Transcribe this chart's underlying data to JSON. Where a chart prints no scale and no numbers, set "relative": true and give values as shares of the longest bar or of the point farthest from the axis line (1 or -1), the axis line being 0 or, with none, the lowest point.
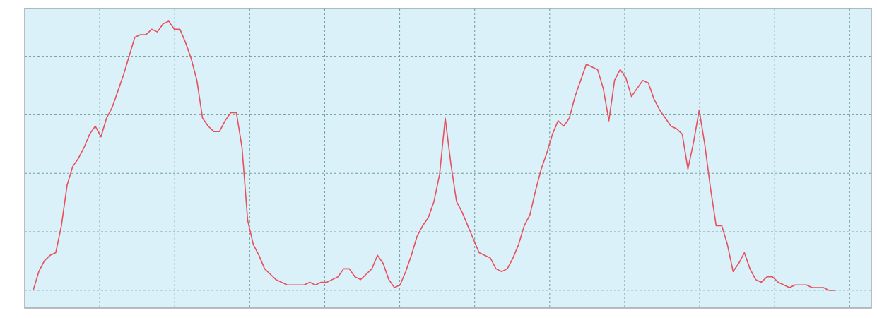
{
  "chart_data": {
    "type": "line",
    "relative": true,
    "grid": true,
    "marker": "none",
    "line_style": "solid",
    "categories": [
      null,
      null,
      null,
      null,
      null,
      null,
      null,
      null,
      null,
      null,
      null,
      null,
      null,
      null,
      null,
      null,
      null,
      null,
      null,
      null,
      null,
      null,
      null,
      null,
      null,
      null,
      null,
      null,
      null,
      null,
      null,
      null,
      null,
      null,
      null,
      null,
      null,
      null,
      null,
      null,
      null,
      null,
      null,
      null,
      null,
      null,
      null,
      null,
      null,
      null,
      null,
      null,
      null,
      null,
      null,
      null,
      null,
      null,
      null,
      null,
      null,
      null,
      null,
      null,
      null,
      null,
      null,
      null,
      null,
      null,
      null,
      null,
      null,
      null,
      null,
      null,
      null,
      null,
      null,
      null,
      null,
      null,
      null,
      null,
      null,
      null,
      null,
      null,
      null,
      null,
      null,
      null,
      null,
      null,
      null,
      null,
      null,
      null,
      null,
      null,
      null,
      null,
      null,
      null,
      null,
      null,
      null,
      null,
      null,
      null,
      null,
      null,
      null,
      null,
      null,
      null,
      null,
      null,
      null,
      null,
      null,
      null,
      null,
      null,
      null,
      null,
      null,
      null,
      null,
      null,
      null,
      null,
      null,
      null,
      null,
      null,
      null,
      null,
      null,
      null,
      null,
      null,
      null
    ],
    "series": [
      {
        "color": "#e8505b",
        "values": [
          0,
          0.07,
          0.11,
          0.13,
          0.14,
          0.24,
          0.39,
          0.46,
          0.49,
          0.53,
          0.58,
          0.61,
          0.57,
          0.64,
          0.68,
          0.74,
          0.8,
          0.87,
          0.94,
          0.95,
          0.95,
          0.97,
          0.96,
          0.99,
          1,
          0.97,
          0.97,
          0.92,
          0.86,
          0.78,
          0.64,
          0.61,
          0.59,
          0.59,
          0.63,
          0.66,
          0.66,
          0.53,
          0.26,
          0.17,
          0.13,
          0.08,
          0.06,
          0.04,
          0.03,
          0.02,
          0.02,
          0.02,
          0.02,
          0.03,
          0.02,
          0.03,
          0.03,
          0.04,
          0.05,
          0.08,
          0.08,
          0.05,
          0.04,
          0.06,
          0.08,
          0.13,
          0.1,
          0.04,
          0.01,
          0.02,
          0.07,
          0.13,
          0.2,
          0.24,
          0.27,
          0.33,
          0.43,
          0.64,
          0.47,
          0.33,
          0.29,
          0.24,
          0.19,
          0.14,
          0.13,
          0.12,
          0.08,
          0.07,
          0.08,
          0.12,
          0.17,
          0.24,
          0.28,
          0.37,
          0.45,
          0.51,
          0.58,
          0.63,
          0.61,
          0.64,
          0.72,
          0.78,
          0.84,
          0.83,
          0.82,
          0.75,
          0.63,
          0.78,
          0.82,
          0.79,
          0.72,
          0.75,
          0.78,
          0.77,
          0.71,
          0.67,
          0.64,
          0.61,
          0.6,
          0.58,
          0.45,
          0.55,
          0.67,
          0.54,
          0.38,
          0.24,
          0.24,
          0.17,
          0.07,
          0.1,
          0.14,
          0.08,
          0.04,
          0.03,
          0.05,
          0.05,
          0.03,
          0.02,
          0.01,
          0.02,
          0.02,
          0.02,
          0.01,
          0.01,
          0.01,
          0,
          0
        ]
      }
    ]
  }
}
